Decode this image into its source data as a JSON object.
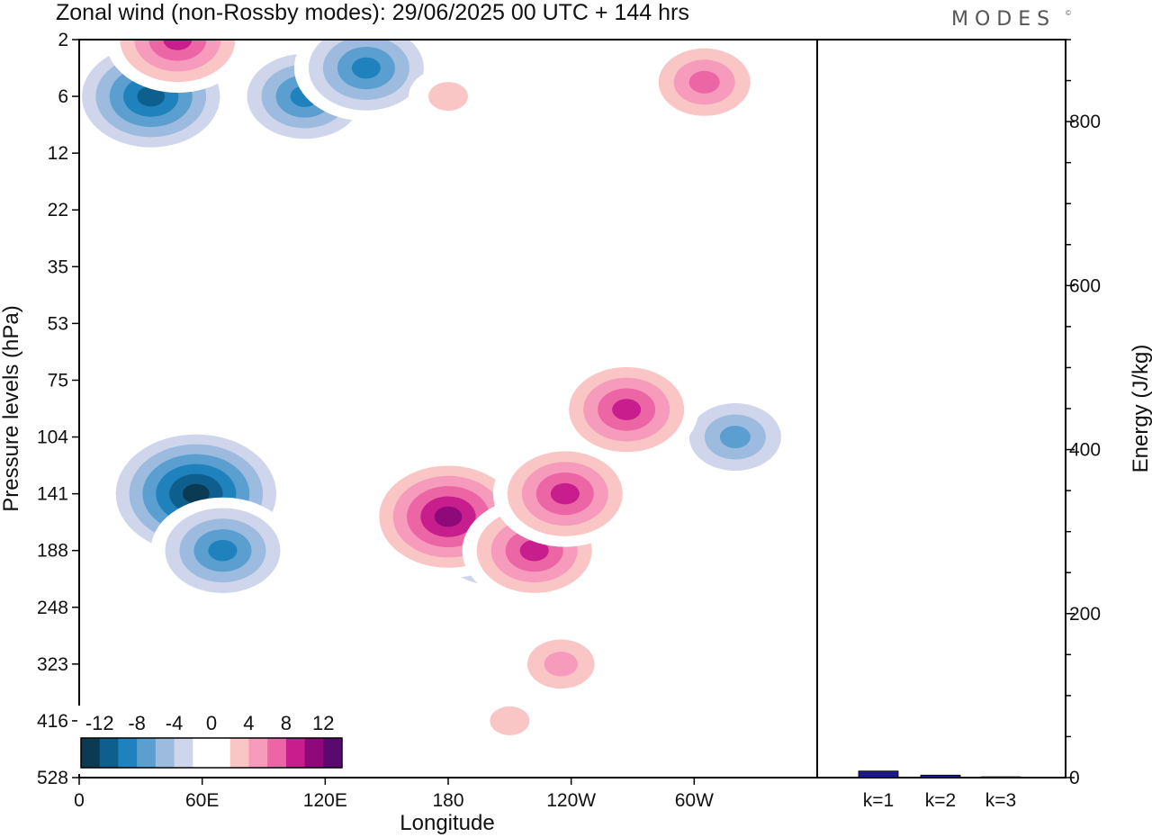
{
  "chart_data": [
    {
      "type": "heatmap",
      "title": "Zonal wind (non-Rossby modes):  29/06/2025  00 UTC  + 144 hrs",
      "xlabel": "Longitude",
      "ylabel": "Pressure levels (hPa)",
      "x_tick_labels": [
        "0",
        "60E",
        "120E",
        "180",
        "120W",
        "60W"
      ],
      "y_tick_labels": [
        "2",
        "6",
        "12",
        "22",
        "35",
        "53",
        "75",
        "104",
        "141",
        "188",
        "248",
        "323",
        "416",
        "528"
      ],
      "colorbar": {
        "labels": [
          "-12",
          "-8",
          "-4",
          "0",
          "4",
          "8",
          "12"
        ],
        "levels": [
          -14,
          -12,
          -10,
          -8,
          -6,
          -4,
          -2,
          0,
          2,
          4,
          6,
          8,
          10,
          12,
          14
        ],
        "colors": [
          "#0b3a53",
          "#0f5f8e",
          "#1f82bd",
          "#5b9fd0",
          "#9cbbdf",
          "#cfd5ea",
          "#ffffff",
          "#ffffff",
          "#f9c6c5",
          "#f69bbb",
          "#ec66a6",
          "#c81d8c",
          "#8e0a7a",
          "#5a0a6e"
        ]
      },
      "features": [
        {
          "sign": "negative",
          "lon": 57,
          "level": 141,
          "peak": -14
        },
        {
          "sign": "negative",
          "lon": 35,
          "level": 6,
          "peak": -12
        },
        {
          "sign": "negative",
          "lon": 70,
          "level": 188,
          "peak": -10
        },
        {
          "sign": "negative",
          "lon": 200,
          "level": 188,
          "peak": -8
        },
        {
          "sign": "negative",
          "lon": 320,
          "level": 104,
          "peak": -8
        },
        {
          "sign": "negative",
          "lon": 110,
          "level": 6,
          "peak": -10
        },
        {
          "sign": "negative",
          "lon": 140,
          "level": 4,
          "peak": -10
        },
        {
          "sign": "positive",
          "lon": 180,
          "level": 160,
          "peak": 13
        },
        {
          "sign": "positive",
          "lon": 222,
          "level": 188,
          "peak": 10
        },
        {
          "sign": "positive",
          "lon": 237,
          "level": 141,
          "peak": 10
        },
        {
          "sign": "positive",
          "lon": 267,
          "level": 90,
          "peak": 11
        },
        {
          "sign": "positive",
          "lon": 305,
          "level": 5,
          "peak": 8
        },
        {
          "sign": "positive",
          "lon": 48,
          "level": 2,
          "peak": 10
        },
        {
          "sign": "positive",
          "lon": 180,
          "level": 6,
          "peak": 5
        },
        {
          "sign": "positive",
          "lon": 235,
          "level": 323,
          "peak": 6
        },
        {
          "sign": "positive",
          "lon": 210,
          "level": 416,
          "peak": 4
        }
      ]
    },
    {
      "type": "bar",
      "categories": [
        "k=1",
        "k=2",
        "k=3"
      ],
      "values": [
        8,
        3,
        1
      ],
      "ylabel": "Energy (J/kg)",
      "ylim": [
        0,
        900
      ],
      "y_tick_labels": [
        "0",
        "200",
        "400",
        "600",
        "800"
      ],
      "bar_color": "#1a1a8c"
    }
  ],
  "brand": {
    "name": "MODES",
    "mark": "©"
  }
}
